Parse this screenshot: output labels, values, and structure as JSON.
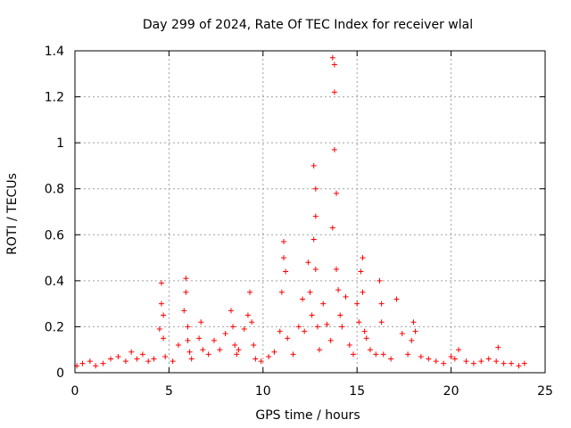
{
  "chart_data": {
    "type": "scatter",
    "title": "Day 299 of 2024, Rate Of TEC Index for receiver wlal",
    "xlabel": "GPS time / hours",
    "ylabel": "ROTI / TECUs",
    "xlim": [
      0,
      25
    ],
    "ylim": [
      0,
      1.4
    ],
    "x_ticks": [
      0,
      5,
      10,
      15,
      20,
      25
    ],
    "x_tick_labels": [
      "0",
      "5",
      "10",
      "15",
      "20",
      "25"
    ],
    "y_ticks": [
      0,
      0.2,
      0.4,
      0.6,
      0.8,
      1,
      1.2,
      1.4
    ],
    "y_tick_labels": [
      "0",
      "0.2",
      "0.4",
      "0.6",
      "0.8",
      "1",
      "1.2",
      "1.4"
    ],
    "grid": true,
    "marker": "+",
    "color": "#ff0000",
    "series": [
      {
        "name": "ROTI",
        "x": [
          0.1,
          0.4,
          0.8,
          1.1,
          1.5,
          1.9,
          2.3,
          2.7,
          3.0,
          3.3,
          3.6,
          3.9,
          4.2,
          4.5,
          4.6,
          4.6,
          4.7,
          4.7,
          4.8,
          5.2,
          5.5,
          5.8,
          5.9,
          5.9,
          6.0,
          6.0,
          6.1,
          6.2,
          6.6,
          6.7,
          6.8,
          7.1,
          7.4,
          7.7,
          8.0,
          8.3,
          8.4,
          8.5,
          8.6,
          8.7,
          9.0,
          9.2,
          9.3,
          9.4,
          9.5,
          9.6,
          9.9,
          10.3,
          10.6,
          10.9,
          11.0,
          11.1,
          11.1,
          11.2,
          11.3,
          11.6,
          11.9,
          12.1,
          12.2,
          12.4,
          12.5,
          12.6,
          12.7,
          12.7,
          12.8,
          12.8,
          12.8,
          12.9,
          13.0,
          13.2,
          13.4,
          13.6,
          13.7,
          13.7,
          13.8,
          13.8,
          13.8,
          13.9,
          13.9,
          14.0,
          14.1,
          14.2,
          14.4,
          14.6,
          14.8,
          15.0,
          15.1,
          15.2,
          15.3,
          15.3,
          15.4,
          15.5,
          15.7,
          16.0,
          16.2,
          16.3,
          16.3,
          16.4,
          16.8,
          17.1,
          17.4,
          17.7,
          17.9,
          18.0,
          18.1,
          18.4,
          18.8,
          19.2,
          19.6,
          20.0,
          20.2,
          20.4,
          20.8,
          21.2,
          21.6,
          22.0,
          22.4,
          22.5,
          22.8,
          23.2,
          23.6,
          23.9
        ],
        "y": [
          0.03,
          0.04,
          0.05,
          0.03,
          0.04,
          0.06,
          0.07,
          0.05,
          0.09,
          0.06,
          0.08,
          0.05,
          0.06,
          0.19,
          0.3,
          0.39,
          0.25,
          0.15,
          0.07,
          0.05,
          0.12,
          0.27,
          0.41,
          0.35,
          0.2,
          0.14,
          0.09,
          0.06,
          0.15,
          0.22,
          0.1,
          0.08,
          0.14,
          0.1,
          0.17,
          0.27,
          0.2,
          0.12,
          0.08,
          0.1,
          0.19,
          0.25,
          0.35,
          0.22,
          0.12,
          0.06,
          0.05,
          0.07,
          0.09,
          0.18,
          0.35,
          0.5,
          0.57,
          0.44,
          0.15,
          0.08,
          0.2,
          0.32,
          0.18,
          0.48,
          0.35,
          0.25,
          0.58,
          0.9,
          0.8,
          0.68,
          0.45,
          0.2,
          0.1,
          0.3,
          0.21,
          0.14,
          0.63,
          1.37,
          1.34,
          1.22,
          0.97,
          0.78,
          0.45,
          0.36,
          0.25,
          0.2,
          0.33,
          0.12,
          0.08,
          0.3,
          0.22,
          0.44,
          0.5,
          0.35,
          0.18,
          0.15,
          0.1,
          0.08,
          0.4,
          0.3,
          0.22,
          0.08,
          0.06,
          0.32,
          0.17,
          0.08,
          0.14,
          0.22,
          0.18,
          0.07,
          0.06,
          0.05,
          0.04,
          0.07,
          0.06,
          0.1,
          0.05,
          0.04,
          0.05,
          0.06,
          0.05,
          0.11,
          0.04,
          0.04,
          0.03,
          0.04
        ]
      }
    ]
  }
}
